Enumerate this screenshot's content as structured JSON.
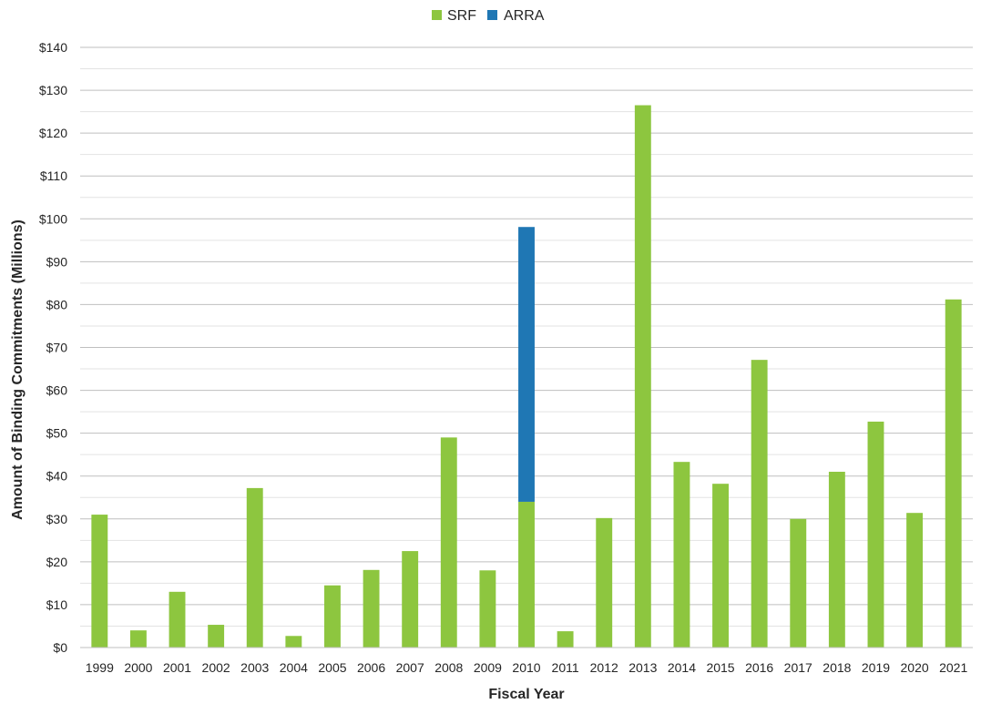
{
  "chart_data": {
    "type": "bar",
    "stacked": true,
    "title": "",
    "xlabel": "Fiscal Year",
    "ylabel": "Amount of Binding Commitments (Millions)",
    "categories": [
      "1999",
      "2000",
      "2001",
      "2002",
      "2003",
      "2004",
      "2005",
      "2006",
      "2007",
      "2008",
      "2009",
      "2010",
      "2011",
      "2012",
      "2013",
      "2014",
      "2015",
      "2016",
      "2017",
      "2018",
      "2019",
      "2020",
      "2021"
    ],
    "series": [
      {
        "name": "SRF",
        "color": "#8dc63f",
        "values": [
          31,
          4,
          13,
          5.3,
          37.2,
          2.7,
          14.5,
          18.1,
          22.5,
          49,
          18,
          34,
          3.8,
          30.2,
          126.5,
          43.3,
          38.2,
          67.1,
          30,
          41,
          52.7,
          31.4,
          81.2
        ]
      },
      {
        "name": "ARRA",
        "color": "#1f77b4",
        "values": [
          0,
          0,
          0,
          0,
          0,
          0,
          0,
          0,
          0,
          0,
          0,
          64.1,
          0,
          0,
          0,
          0,
          0,
          0,
          0,
          0,
          0,
          0,
          0
        ]
      }
    ],
    "ylim": [
      0,
      140
    ],
    "yticks": [
      0,
      10,
      20,
      30,
      40,
      50,
      60,
      70,
      80,
      90,
      100,
      110,
      120,
      130,
      140
    ],
    "ytick_labels": [
      "$0",
      "$10",
      "$20",
      "$30",
      "$40",
      "$50",
      "$60",
      "$70",
      "$80",
      "$90",
      "$100",
      "$110",
      "$120",
      "$130",
      "$140"
    ],
    "grid": true,
    "legend_position": "top-center"
  }
}
